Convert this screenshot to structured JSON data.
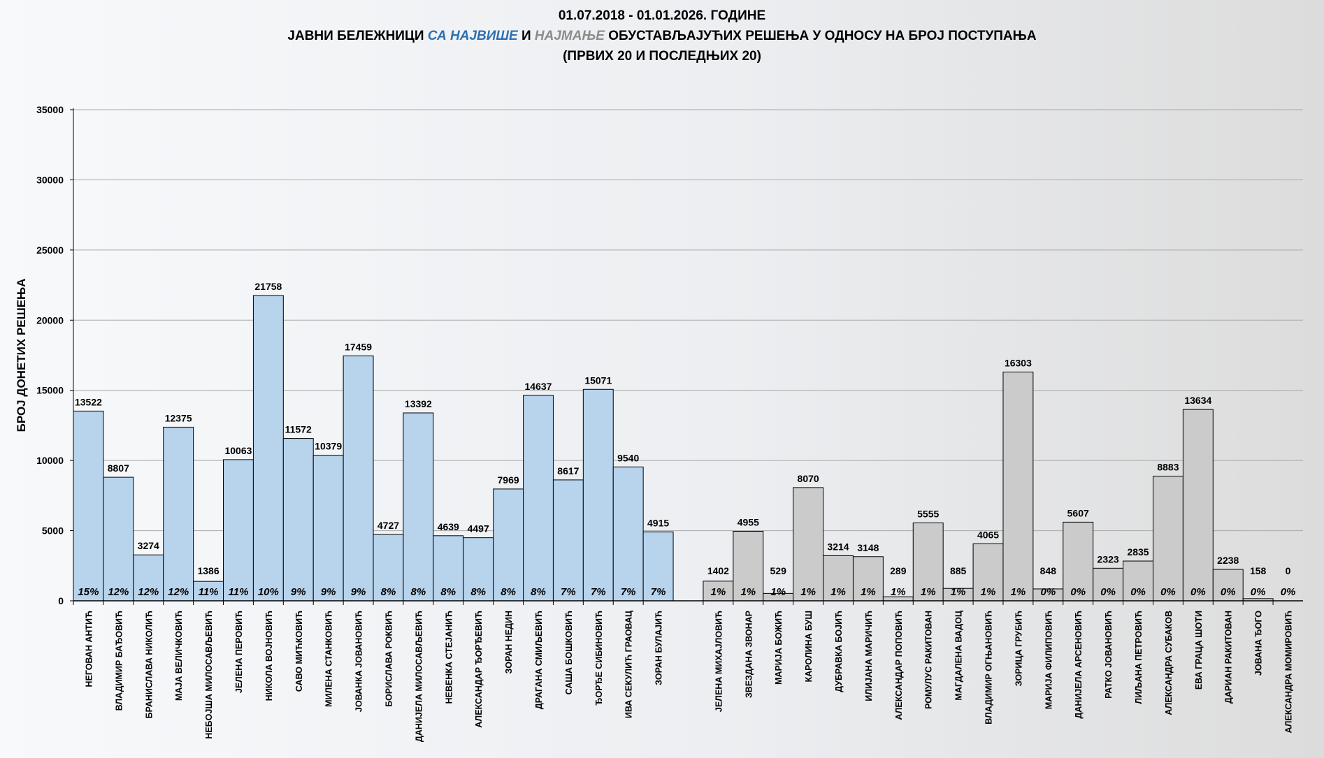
{
  "title": {
    "line1": "01.07.2018 - 01.01.2026. ГОДИНЕ",
    "line2_a": "ЈАВНИ БЕЛЕЖНИЦИ ",
    "line2_b": "СА НАЈВИШЕ",
    "line2_c": " И ",
    "line2_d": "НАЈМАЊЕ",
    "line2_e": " ОБУСТАВЉАЈУЋИХ РЕШЕЊА У ОДНОСУ НА БРОЈ ПОСТУПАЊА",
    "line3": "(ПРВИХ 20 И ПОСЛЕДЊИХ 20)"
  },
  "chart_data": {
    "type": "bar",
    "ylabel": "БРОЈ ДОНЕТИХ РЕШЕЊА",
    "ylim": [
      0,
      35000
    ],
    "yticks": [
      0,
      5000,
      10000,
      15000,
      20000,
      25000,
      30000,
      35000
    ],
    "grid": true,
    "colors": {
      "top20": "#b8d3ec",
      "bottom20": "#cbcbcb",
      "highlight_top": "#2f6fb0",
      "highlight_bottom": "#8c8c8c"
    },
    "series": [
      {
        "group": "top20",
        "categories": [
          "НЕГОВАН АНТИЋ",
          "ВЛАДИМИР БАЂОВИЋ",
          "БРАНИСЛАВА НИКОЛИЋ",
          "МАЈА ВЕЛИЧКОВИЋ",
          "НЕБОЈША МИЛОСАВЉЕВИЋ",
          "ЈЕЛЕНА ПЕРОВИЋ",
          "НИКОЛА ВОЈНОВИЋ",
          "САВО МИЋКОВИЋ",
          "МИЛЕНА СТАНКОВИЋ",
          "ЈОВАНКА ЈОВАНОВИЋ",
          "БОРИСЛАВА РОКВИЋ",
          "ДАНИЈЕЛА МИЛОСАВЉЕВИЋ",
          "НЕВЕНКА СТЕЈАНИЋ",
          "АЛЕКСАНДАР ЂОРЂЕВИЋ",
          "ЗОРАН НЕДИН",
          "ДРАГАНА СМИЉЕВИЋ",
          "САША БОШКОВИЋ",
          "ЂОРЂЕ СИБИНОВИЋ",
          "ИВА СЕКУЛИЋ ГРАОВАЦ",
          "ЗОРАН БУЛАЈИЋ"
        ],
        "values": [
          13522,
          8807,
          3274,
          12375,
          1386,
          10063,
          21758,
          11572,
          10379,
          17459,
          4727,
          13392,
          4639,
          4497,
          7969,
          14637,
          8617,
          15071,
          9540,
          4915
        ],
        "percent_labels": [
          "15%",
          "12%",
          "12%",
          "12%",
          "11%",
          "11%",
          "10%",
          "9%",
          "9%",
          "9%",
          "8%",
          "8%",
          "8%",
          "8%",
          "8%",
          "8%",
          "7%",
          "7%",
          "7%",
          "7%"
        ]
      },
      {
        "group": "bottom20",
        "categories": [
          "ЈЕЛЕНА МИХАЈЛОВИЋ",
          "ЗВЕЗДАНА ЗВОНАР",
          "МАРИЈА БОЖИЋ",
          "КАРОЛИНА БУШ",
          "ДУБРАВКА БОЈИЋ",
          "ИЛИЈАНА МАРИЧИЋ",
          "АЛЕКСАНДАР ПОПОВИЋ",
          "РОМУЛУС РАКИТОВАН",
          "МАГДАЛЕНА ВАДОЦ",
          "ВЛАДИМИР ОГЊАНОВИЋ",
          "ЗОРИЦА ГРУБИЋ",
          "МАРИЈА ФИЛИПОВИЋ",
          "ДАНИЈЕЛА АРСЕНОВИЋ",
          "РАТКО ЈОВАНОВИЋ",
          "ЛИЉАНА ПЕТРОВИЋ",
          "АЛЕКСАНДРА СУБАКОВ",
          "ЕВА ГРАЦА ШОТИ",
          "ДАРИАН РАКИТОВАН",
          "ЈОВАНА ЂОГО",
          "АЛЕКСАНДРА МОМИРОВИЋ"
        ],
        "values": [
          1402,
          4955,
          529,
          8070,
          3214,
          3148,
          289,
          5555,
          885,
          4065,
          16303,
          848,
          5607,
          2323,
          2835,
          8883,
          13634,
          2238,
          158,
          0
        ],
        "percent_labels": [
          "1%",
          "1%",
          "1%",
          "1%",
          "1%",
          "1%",
          "1%",
          "1%",
          "1%",
          "1%",
          "1%",
          "0%",
          "0%",
          "0%",
          "0%",
          "0%",
          "0%",
          "0%",
          "0%",
          "0%"
        ]
      }
    ]
  }
}
